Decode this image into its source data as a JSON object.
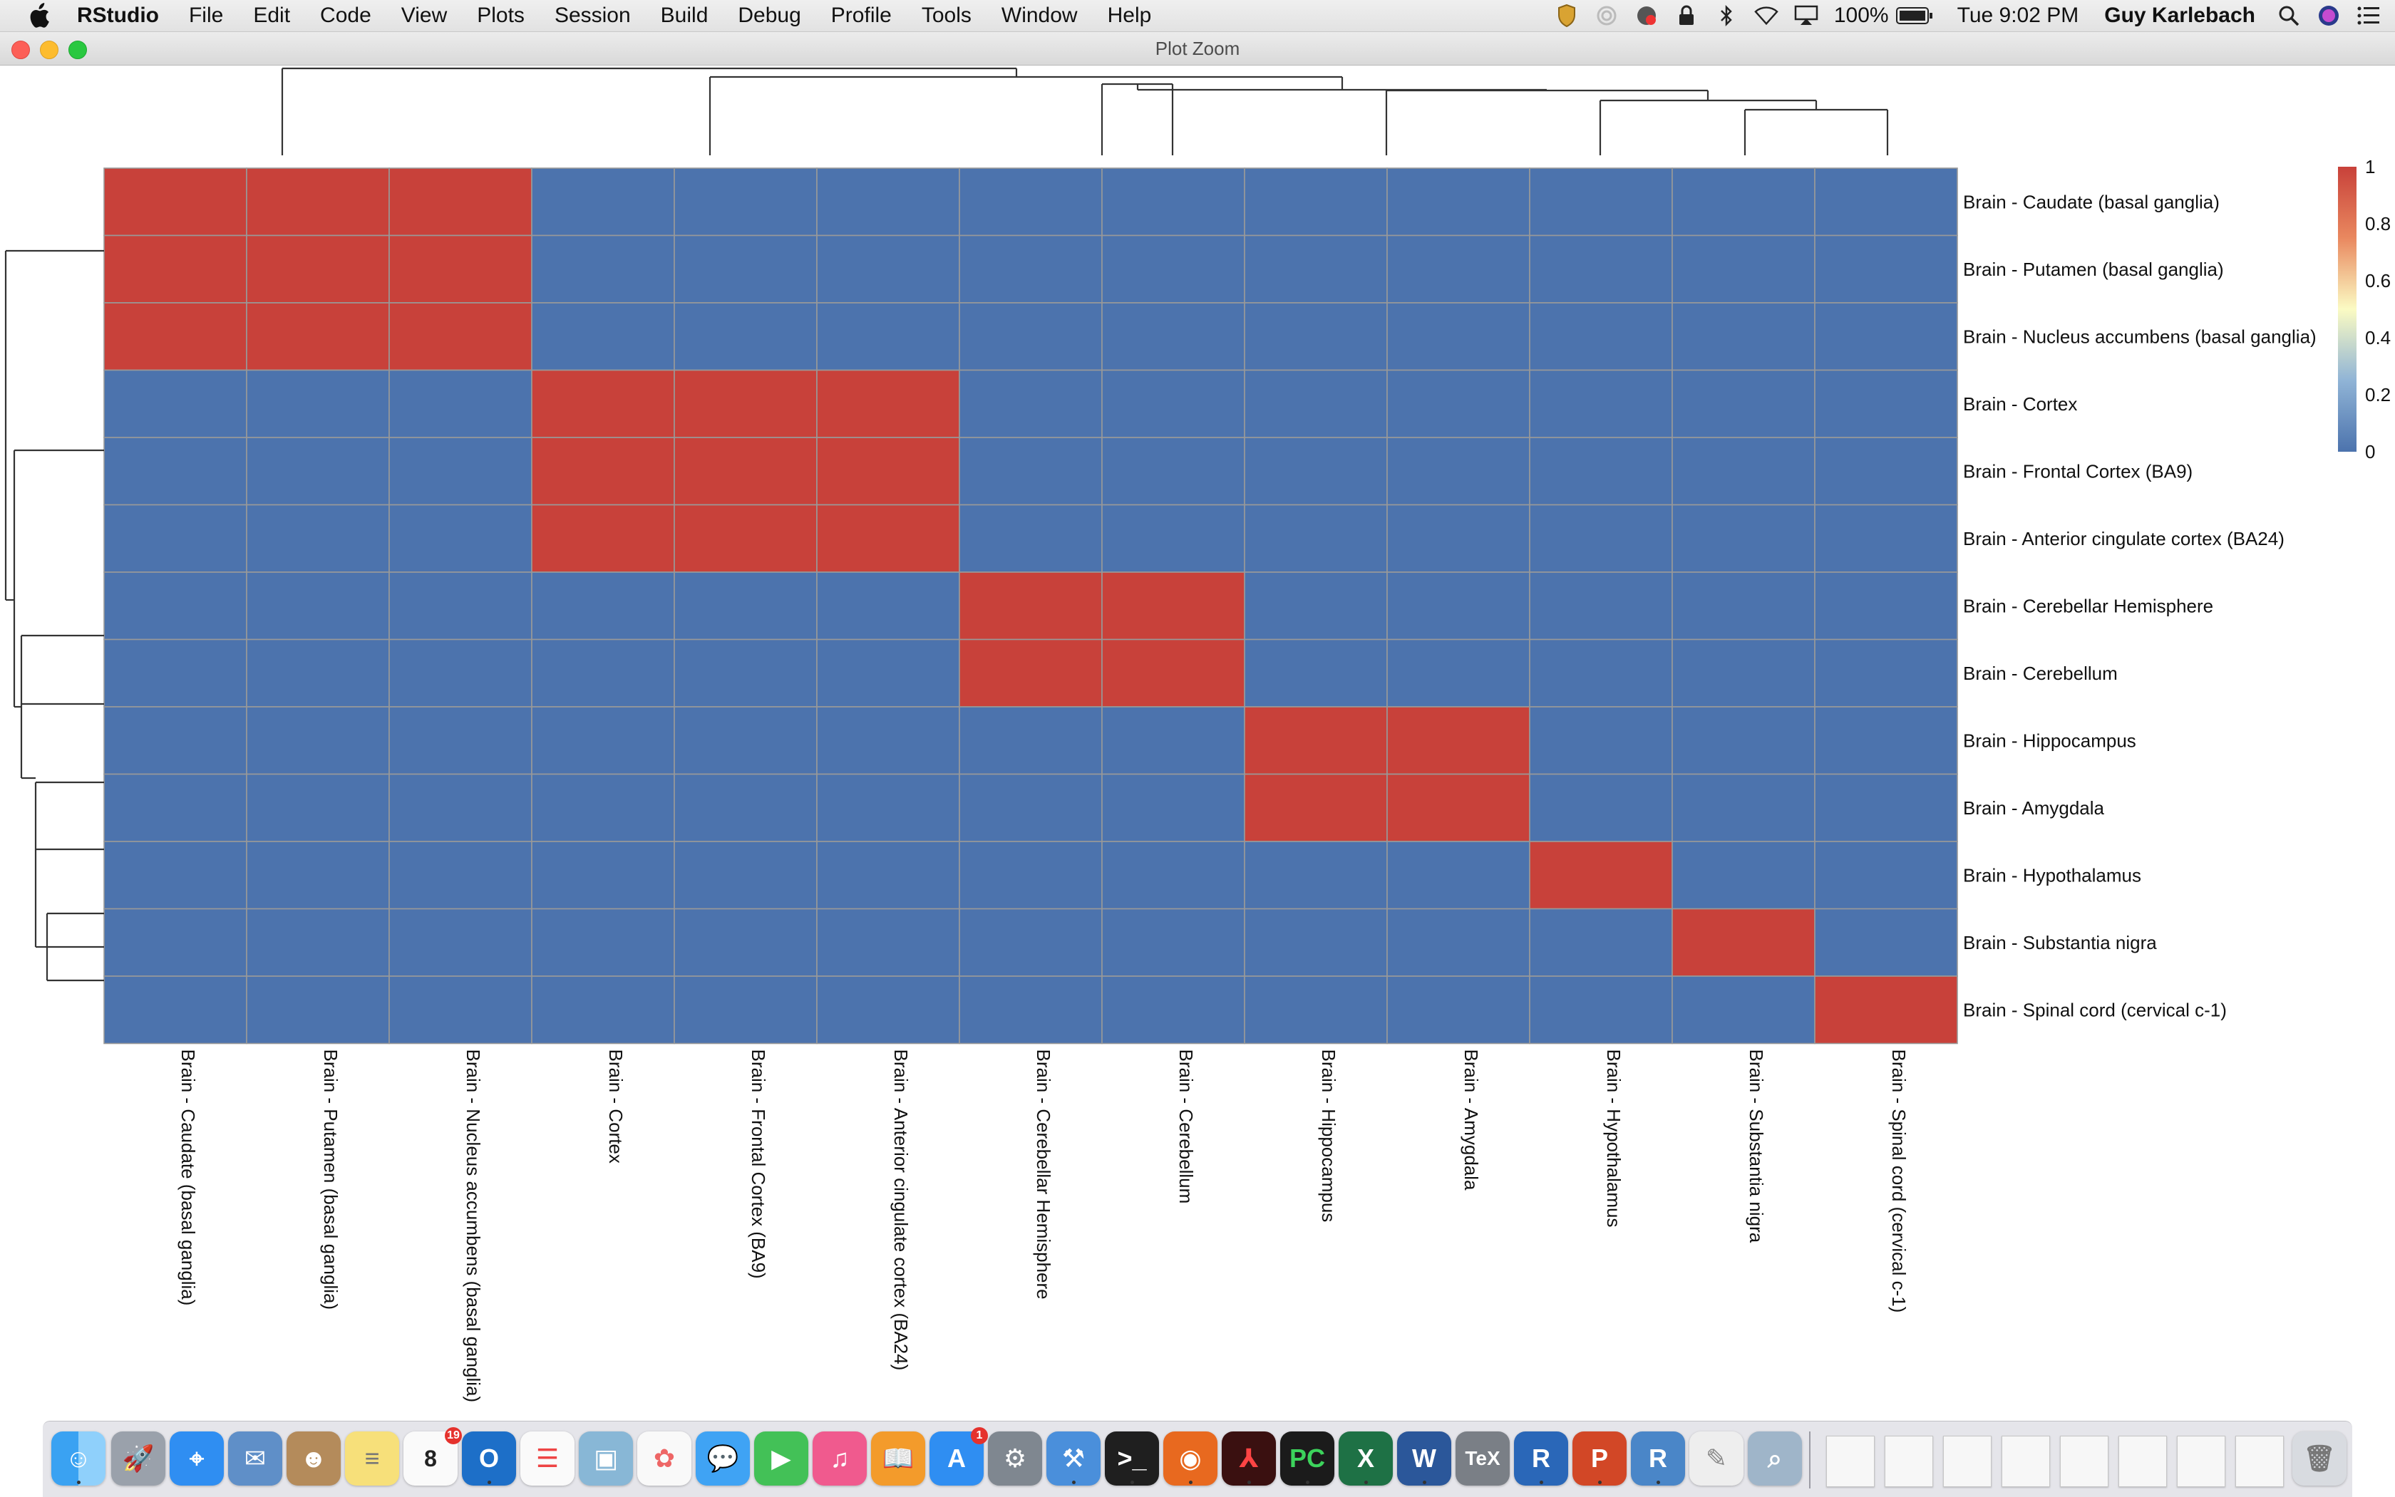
{
  "menubar": {
    "app_name": "RStudio",
    "items": [
      "File",
      "Edit",
      "Code",
      "View",
      "Plots",
      "Session",
      "Build",
      "Debug",
      "Profile",
      "Tools",
      "Window",
      "Help"
    ],
    "battery": "100%",
    "clock": "Tue 9:02 PM",
    "user": "Guy Karlebach"
  },
  "window": {
    "title": "Plot Zoom"
  },
  "heatmap": {
    "colors": {
      "high": "#c8413a",
      "low": "#4c73ad",
      "grid": "#999999",
      "mid": "#fbfbc3"
    },
    "legend_ticks": [
      "1",
      "0.8",
      "0.6",
      "0.4",
      "0.2",
      "0"
    ]
  },
  "chart_data": {
    "type": "heatmap",
    "row_labels": [
      "Brain - Caudate (basal ganglia)",
      "Brain - Putamen (basal ganglia)",
      "Brain - Nucleus accumbens (basal ganglia)",
      "Brain - Cortex",
      "Brain - Frontal Cortex (BA9)",
      "Brain - Anterior cingulate cortex (BA24)",
      "Brain - Cerebellar Hemisphere",
      "Brain - Cerebellum",
      "Brain - Hippocampus",
      "Brain - Amygdala",
      "Brain - Hypothalamus",
      "Brain - Substantia nigra",
      "Brain - Spinal cord (cervical c-1)"
    ],
    "col_labels": [
      "Brain - Caudate (basal ganglia)",
      "Brain - Putamen (basal ganglia)",
      "Brain - Nucleus accumbens (basal ganglia)",
      "Brain - Cortex",
      "Brain - Frontal Cortex (BA9)",
      "Brain - Anterior cingulate cortex (BA24)",
      "Brain - Cerebellar Hemisphere",
      "Brain - Cerebellum",
      "Brain - Hippocampus",
      "Brain - Amygdala",
      "Brain - Hypothalamus",
      "Brain - Substantia nigra",
      "Brain - Spinal cord (cervical c-1)"
    ],
    "values": [
      [
        1,
        1,
        1,
        0,
        0,
        0,
        0,
        0,
        0,
        0,
        0,
        0,
        0
      ],
      [
        1,
        1,
        1,
        0,
        0,
        0,
        0,
        0,
        0,
        0,
        0,
        0,
        0
      ],
      [
        1,
        1,
        1,
        0,
        0,
        0,
        0,
        0,
        0,
        0,
        0,
        0,
        0
      ],
      [
        0,
        0,
        0,
        1,
        1,
        1,
        0,
        0,
        0,
        0,
        0,
        0,
        0
      ],
      [
        0,
        0,
        0,
        1,
        1,
        1,
        0,
        0,
        0,
        0,
        0,
        0,
        0
      ],
      [
        0,
        0,
        0,
        1,
        1,
        1,
        0,
        0,
        0,
        0,
        0,
        0,
        0
      ],
      [
        0,
        0,
        0,
        0,
        0,
        0,
        1,
        1,
        0,
        0,
        0,
        0,
        0
      ],
      [
        0,
        0,
        0,
        0,
        0,
        0,
        1,
        1,
        0,
        0,
        0,
        0,
        0
      ],
      [
        0,
        0,
        0,
        0,
        0,
        0,
        0,
        0,
        1,
        1,
        0,
        0,
        0
      ],
      [
        0,
        0,
        0,
        0,
        0,
        0,
        0,
        0,
        1,
        1,
        0,
        0,
        0
      ],
      [
        0,
        0,
        0,
        0,
        0,
        0,
        0,
        0,
        0,
        0,
        1,
        0,
        0
      ],
      [
        0,
        0,
        0,
        0,
        0,
        0,
        0,
        0,
        0,
        0,
        0,
        1,
        0
      ],
      [
        0,
        0,
        0,
        0,
        0,
        0,
        0,
        0,
        0,
        0,
        0,
        0,
        1
      ]
    ],
    "color_range": [
      0,
      1
    ],
    "legend": "right"
  }
}
